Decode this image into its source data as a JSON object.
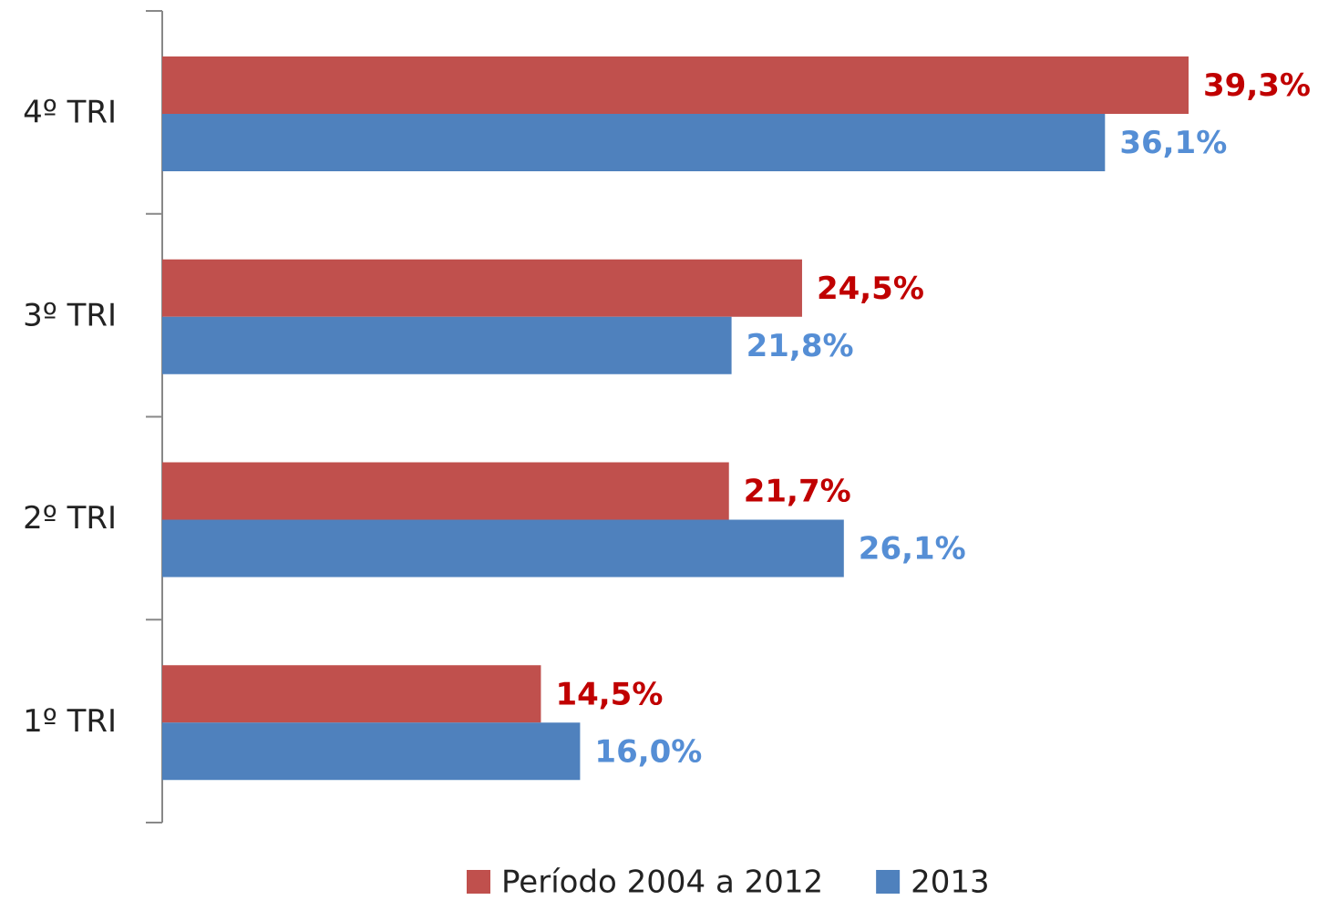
{
  "chart_data": {
    "type": "hbar",
    "categories": [
      "4º TRI",
      "3º TRI",
      "2º TRI",
      "1º TRI"
    ],
    "series": [
      {
        "name": "Período 2004 a 2012",
        "color": "#c0504d",
        "label_color": "#c00000",
        "values": [
          39.3,
          24.5,
          21.7,
          14.5
        ],
        "value_labels": [
          "39,3%",
          "24,5%",
          "21,7%",
          "14,5%"
        ]
      },
      {
        "name": "2013",
        "color": "#4f81bd",
        "label_color": "#558ed5",
        "values": [
          36.1,
          21.8,
          26.1,
          16.0
        ],
        "value_labels": [
          "36,1%",
          "21,8%",
          "26,1%",
          "16,0%"
        ]
      }
    ],
    "legend": "bottom"
  }
}
